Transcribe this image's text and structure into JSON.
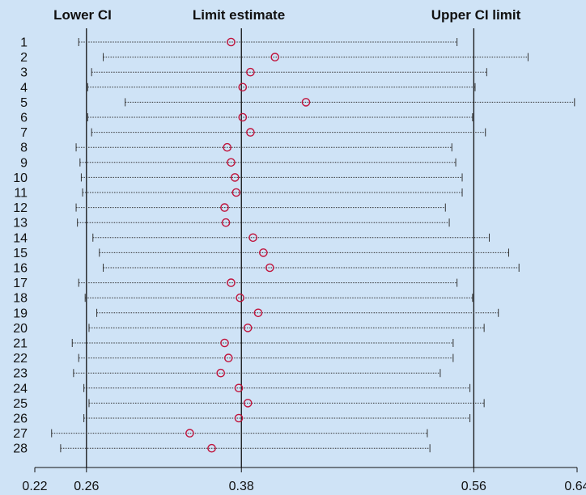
{
  "chart_data": {
    "type": "forest",
    "headers": {
      "lower": "Lower CI",
      "estimate": "Limit estimate",
      "upper": "Upper CI limit"
    },
    "reference_lines": [
      0.26,
      0.38,
      0.56
    ],
    "xlim": [
      0.22,
      0.64
    ],
    "x_ticks": [
      0.22,
      0.26,
      0.38,
      0.56,
      0.64
    ],
    "x_tick_labels": [
      "0.22",
      "0.26",
      "0.38",
      "0.56",
      "0.64"
    ],
    "grid": false,
    "marker_color": "#c0143c",
    "studies": [
      {
        "label": "1",
        "lower": 0.254,
        "estimate": 0.372,
        "upper": 0.547
      },
      {
        "label": "2",
        "lower": 0.273,
        "estimate": 0.406,
        "upper": 0.602
      },
      {
        "label": "3",
        "lower": 0.264,
        "estimate": 0.387,
        "upper": 0.57
      },
      {
        "label": "4",
        "lower": 0.261,
        "estimate": 0.381,
        "upper": 0.561
      },
      {
        "label": "5",
        "lower": 0.29,
        "estimate": 0.43,
        "upper": 0.638
      },
      {
        "label": "6",
        "lower": 0.261,
        "estimate": 0.381,
        "upper": 0.559
      },
      {
        "label": "7",
        "lower": 0.264,
        "estimate": 0.387,
        "upper": 0.569
      },
      {
        "label": "8",
        "lower": 0.252,
        "estimate": 0.369,
        "upper": 0.543
      },
      {
        "label": "9",
        "lower": 0.255,
        "estimate": 0.372,
        "upper": 0.546
      },
      {
        "label": "10",
        "lower": 0.256,
        "estimate": 0.375,
        "upper": 0.551
      },
      {
        "label": "11",
        "lower": 0.257,
        "estimate": 0.376,
        "upper": 0.551
      },
      {
        "label": "12",
        "lower": 0.252,
        "estimate": 0.367,
        "upper": 0.538
      },
      {
        "label": "13",
        "lower": 0.253,
        "estimate": 0.368,
        "upper": 0.541
      },
      {
        "label": "14",
        "lower": 0.265,
        "estimate": 0.389,
        "upper": 0.572
      },
      {
        "label": "15",
        "lower": 0.27,
        "estimate": 0.397,
        "upper": 0.587
      },
      {
        "label": "16",
        "lower": 0.273,
        "estimate": 0.402,
        "upper": 0.595
      },
      {
        "label": "17",
        "lower": 0.254,
        "estimate": 0.372,
        "upper": 0.547
      },
      {
        "label": "18",
        "lower": 0.259,
        "estimate": 0.379,
        "upper": 0.559
      },
      {
        "label": "19",
        "lower": 0.268,
        "estimate": 0.393,
        "upper": 0.579
      },
      {
        "label": "20",
        "lower": 0.262,
        "estimate": 0.385,
        "upper": 0.568
      },
      {
        "label": "21",
        "lower": 0.249,
        "estimate": 0.367,
        "upper": 0.544
      },
      {
        "label": "22",
        "lower": 0.254,
        "estimate": 0.37,
        "upper": 0.544
      },
      {
        "label": "23",
        "lower": 0.25,
        "estimate": 0.364,
        "upper": 0.534
      },
      {
        "label": "24",
        "lower": 0.258,
        "estimate": 0.378,
        "upper": 0.557
      },
      {
        "label": "25",
        "lower": 0.262,
        "estimate": 0.385,
        "upper": 0.568
      },
      {
        "label": "26",
        "lower": 0.258,
        "estimate": 0.378,
        "upper": 0.557
      },
      {
        "label": "27",
        "lower": 0.233,
        "estimate": 0.34,
        "upper": 0.524
      },
      {
        "label": "28",
        "lower": 0.24,
        "estimate": 0.357,
        "upper": 0.526
      }
    ]
  }
}
